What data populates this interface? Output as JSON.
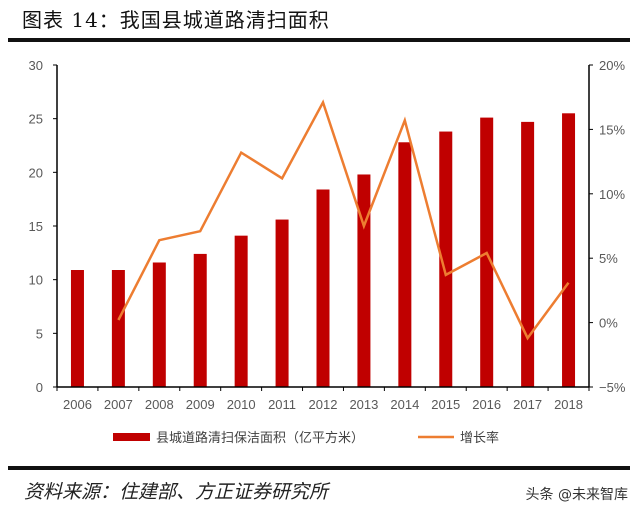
{
  "header": {
    "title": "图表 14：我国县城道路清扫面积"
  },
  "footer": {
    "source": "资料来源：住建部、方正证券研究所",
    "watermark": "头条 @未来智库"
  },
  "colors": {
    "bar": "#C00000",
    "line": "#ED7D31",
    "axis": "#000000",
    "tick_text": "#595959"
  },
  "chart_data": {
    "type": "bar",
    "title": "我国县城道路清扫面积",
    "categories": [
      "2006",
      "2007",
      "2008",
      "2009",
      "2010",
      "2011",
      "2012",
      "2013",
      "2014",
      "2015",
      "2016",
      "2017",
      "2018"
    ],
    "series": [
      {
        "name": "县城道路清扫保洁面积（亿平方米）",
        "type": "bar",
        "axis": "left",
        "values": [
          10.9,
          10.9,
          11.6,
          12.4,
          14.1,
          15.6,
          18.4,
          19.8,
          22.8,
          23.8,
          25.1,
          24.7,
          25.5
        ]
      },
      {
        "name": "增长率",
        "type": "line",
        "axis": "right",
        "values": [
          null,
          0.2,
          6.4,
          7.1,
          13.2,
          11.2,
          17.1,
          7.5,
          15.7,
          3.7,
          5.4,
          -1.2,
          3.1
        ],
        "unit": "%"
      }
    ],
    "left_axis": {
      "ylim": [
        0,
        30
      ],
      "ticks": [
        "0",
        "5",
        "10",
        "15",
        "20",
        "25",
        "30"
      ]
    },
    "right_axis": {
      "ylim": [
        -5,
        20
      ],
      "ticks": [
        "-5%",
        "0%",
        "5%",
        "10%",
        "15%",
        "20%"
      ]
    },
    "xlabel": "",
    "ylabel": "",
    "grid": false,
    "legend_position": "bottom",
    "legend": [
      "县城道路清扫保洁面积（亿平方米）",
      "增长率"
    ]
  }
}
